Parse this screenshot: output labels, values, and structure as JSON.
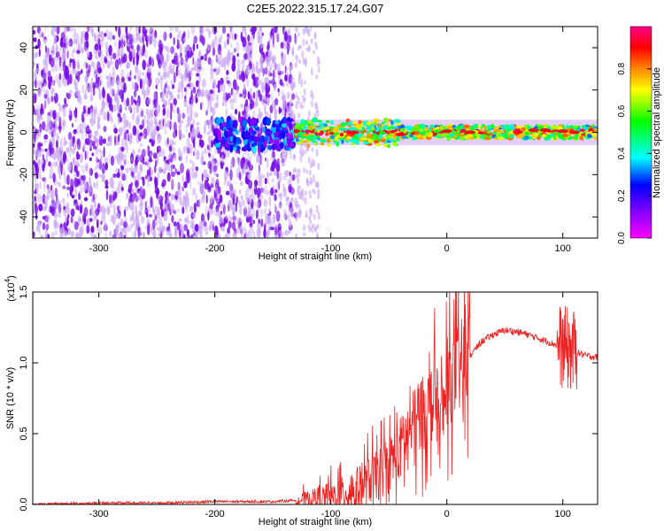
{
  "figure": {
    "title": "C2E5.2022.315.17.24.G07"
  },
  "colors": {
    "trace": "#ee2222",
    "purple_dense": "#7a11e8",
    "purple_light": "#c9a6f5"
  },
  "colorbar": {
    "label": "Normalized spectral amplitude",
    "ticks": [
      "0.0",
      "0.2",
      "0.4",
      "0.6",
      "0.8"
    ],
    "range": [
      0,
      1
    ],
    "stops": [
      "#ff00ff",
      "#8800ff",
      "#0000ff",
      "#00ffff",
      "#00ff00",
      "#ffff00",
      "#ff8800",
      "#ff0000",
      "#ff0088"
    ]
  },
  "chart_data": [
    {
      "type": "heatmap",
      "title": "C2E5.2022.315.17.24.G07",
      "xlabel": "Height of straight line (km)",
      "ylabel": "Frequency (Hz)",
      "xlim": [
        -357,
        130
      ],
      "ylim": [
        -50,
        50
      ],
      "x_ticks": [
        "-300",
        "-200",
        "-100",
        "0",
        "100"
      ],
      "y_ticks": [
        "-40",
        "-20",
        "0",
        "20",
        "40"
      ],
      "colormap": "rainbow",
      "colorbar_label": "Normalized spectral amplitude",
      "regions": [
        {
          "x_range": [
            -357,
            -130
          ],
          "y_range": [
            -50,
            50
          ],
          "amplitude": "low, scattered (0.0-0.2)"
        },
        {
          "x_range": [
            -130,
            -110
          ],
          "y_range": [
            -50,
            50
          ],
          "amplitude": "sparse (~0.05)"
        },
        {
          "x_range": [
            -200,
            -130
          ],
          "y_range": [
            -8,
            6
          ],
          "amplitude": "0.1-0.3"
        },
        {
          "x_range": [
            -130,
            130
          ],
          "y_range": [
            -5,
            5
          ],
          "amplitude": "0.4-1.0 band near 0 Hz"
        }
      ]
    },
    {
      "type": "line",
      "xlabel": "Height of straight line (km)",
      "ylabel": "SNR (10 * v/v)",
      "y_multiplier": "(x10^4)",
      "xlim": [
        -357,
        130
      ],
      "ylim": [
        0,
        1.5
      ],
      "x_ticks": [
        "-300",
        "-200",
        "-100",
        "0",
        "100"
      ],
      "y_ticks": [
        "0.0",
        "0.5",
        "1.0",
        "1.5"
      ],
      "series": [
        {
          "x": [
            -357,
            -300,
            -250,
            -200,
            -150,
            -130,
            -110,
            -100,
            -90,
            -80,
            -70,
            -60,
            -50,
            -40,
            -30,
            -20,
            -10,
            -5,
            0,
            10,
            20,
            30,
            40,
            50,
            60,
            70,
            80,
            90,
            100,
            110,
            120,
            130
          ],
          "y": [
            0.0,
            0.01,
            0.01,
            0.02,
            0.02,
            0.03,
            0.05,
            0.06,
            0.08,
            0.1,
            0.15,
            0.2,
            0.28,
            0.4,
            0.55,
            0.65,
            0.75,
            0.5,
            0.85,
            0.95,
            1.05,
            1.15,
            1.2,
            1.23,
            1.22,
            1.2,
            1.17,
            1.14,
            1.11,
            1.08,
            1.05,
            1.04
          ]
        }
      ]
    }
  ],
  "bottom_axis": {
    "multiplier_label": "(x10",
    "multiplier_exp": "4",
    "multiplier_close": ")"
  }
}
